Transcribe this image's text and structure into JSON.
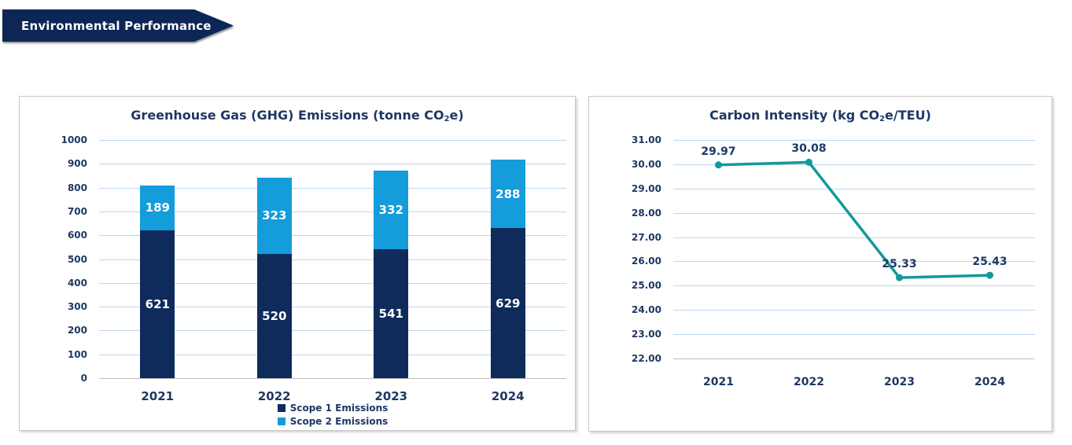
{
  "banner": {
    "label": "Environmental Performance",
    "bg_color": "#0D2656",
    "text_color": "#FFFFFF"
  },
  "colors": {
    "text_navy": "#1F3864",
    "gridline": "#BDD7EE",
    "axis_line": "#BFBFBF",
    "panel_border": "#C8C8C8"
  },
  "chart_data": [
    {
      "id": "ghg-emissions",
      "type": "bar",
      "stacked": true,
      "title_parts": {
        "pre": "Greenhouse Gas (GHG) Emissions (tonne CO",
        "sub": "2",
        "post": "e)"
      },
      "categories": [
        "2021",
        "2022",
        "2023",
        "2024"
      ],
      "series": [
        {
          "name": "Scope 1 Emissions",
          "color": "#0E2B5C",
          "values": [
            621,
            520,
            541,
            629
          ]
        },
        {
          "name": "Scope 2 Emissions",
          "color": "#149CDB",
          "values": [
            189,
            323,
            332,
            288
          ]
        }
      ],
      "totals": [
        810,
        843,
        873,
        917
      ],
      "value_label_color": "#FFFFFF",
      "ylim": [
        0,
        1000
      ],
      "ytick_step": 100,
      "ytick_decimals": 0,
      "grid": true,
      "legend_position": "bottom"
    },
    {
      "id": "carbon-intensity",
      "type": "line",
      "title_parts": {
        "pre": "Carbon Intensity (kg CO",
        "sub": "2",
        "post": "e/TEU)"
      },
      "categories": [
        "2021",
        "2022",
        "2023",
        "2024"
      ],
      "series": [
        {
          "name": "Carbon Intensity",
          "color": "#12999C",
          "values": [
            29.97,
            30.08,
            25.33,
            25.43
          ]
        }
      ],
      "data_labels": [
        "29.97",
        "30.08",
        "25.33",
        "25.43"
      ],
      "ylim": [
        22,
        31
      ],
      "ytick_step": 1,
      "ytick_decimals": 2,
      "grid": true,
      "legend_position": "none"
    }
  ]
}
